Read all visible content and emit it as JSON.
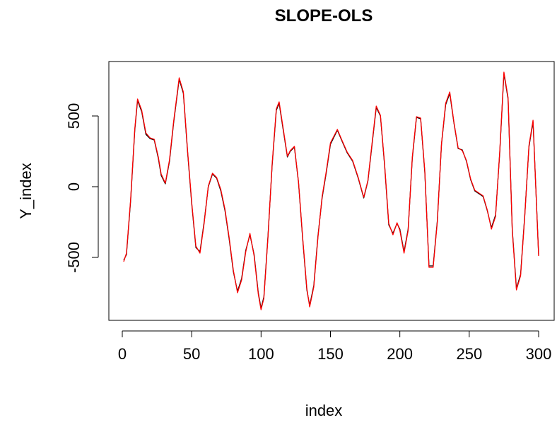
{
  "chart_data": {
    "type": "line",
    "title": "SLOPE-OLS",
    "xlabel": "index",
    "ylabel": "Y_index",
    "xlim": [
      1,
      300
    ],
    "ylim": [
      -900,
      820
    ],
    "x_ticks": [
      0,
      50,
      100,
      150,
      200,
      250,
      300
    ],
    "x_tick_labels": [
      "0",
      "50",
      "100",
      "150",
      "200",
      "250",
      "300"
    ],
    "y_ticks": [
      -500,
      0,
      500
    ],
    "y_tick_labels": [
      "-500",
      "0",
      "500"
    ],
    "grid": false,
    "legend": "none",
    "series": [
      {
        "color": "#000000",
        "x": [
          1,
          3,
          6,
          9,
          11,
          14,
          17,
          20,
          23,
          26,
          28,
          31,
          34,
          37,
          41,
          44,
          47,
          50,
          53,
          56,
          59,
          62,
          65,
          68,
          71,
          74,
          77,
          80,
          83,
          86,
          89,
          92,
          95,
          98,
          100,
          102,
          105,
          108,
          111,
          113,
          116,
          119,
          121,
          124,
          127,
          130,
          133,
          135,
          138,
          141,
          144,
          147,
          150,
          155,
          158,
          162,
          166,
          170,
          174,
          177,
          180,
          183,
          186,
          189,
          192,
          195,
          198,
          200,
          203,
          206,
          209,
          212,
          215,
          218,
          221,
          224,
          227,
          230,
          233,
          236,
          239,
          242,
          245,
          248,
          251,
          254,
          257,
          260,
          263,
          266,
          269,
          272,
          275,
          278,
          281,
          284,
          287,
          290,
          293,
          296,
          300
        ],
        "y": [
          -520,
          -480,
          -100,
          400,
          610,
          530,
          370,
          340,
          330,
          200,
          80,
          20,
          180,
          450,
          760,
          660,
          250,
          -120,
          -430,
          -460,
          -250,
          0,
          90,
          60,
          -30,
          -170,
          -370,
          -600,
          -740,
          -650,
          -450,
          -340,
          -480,
          -750,
          -860,
          -780,
          -350,
          150,
          540,
          590,
          400,
          210,
          250,
          280,
          30,
          -370,
          -730,
          -840,
          -700,
          -350,
          -80,
          100,
          300,
          400,
          330,
          240,
          180,
          60,
          -80,
          40,
          300,
          560,
          500,
          150,
          -270,
          -330,
          -260,
          -300,
          -460,
          -300,
          200,
          490,
          480,
          100,
          -560,
          -560,
          -240,
          300,
          580,
          660,
          450,
          270,
          260,
          180,
          50,
          -30,
          -50,
          -70,
          -170,
          -290,
          -200,
          240,
          800,
          620,
          -300,
          -720,
          -620,
          -200,
          280,
          460,
          -480
        ]
      },
      {
        "color": "#ff0000",
        "x": [
          1,
          3,
          6,
          9,
          11,
          14,
          17,
          20,
          23,
          26,
          28,
          31,
          34,
          37,
          41,
          44,
          47,
          50,
          53,
          56,
          59,
          62,
          65,
          68,
          71,
          74,
          77,
          80,
          83,
          86,
          89,
          92,
          95,
          98,
          100,
          102,
          105,
          108,
          111,
          113,
          116,
          119,
          121,
          124,
          127,
          130,
          133,
          135,
          138,
          141,
          144,
          147,
          150,
          155,
          158,
          162,
          166,
          170,
          174,
          177,
          180,
          183,
          186,
          189,
          192,
          195,
          198,
          200,
          203,
          206,
          209,
          212,
          215,
          218,
          221,
          224,
          227,
          230,
          233,
          236,
          239,
          242,
          245,
          248,
          251,
          254,
          257,
          260,
          263,
          266,
          269,
          272,
          275,
          278,
          281,
          284,
          287,
          290,
          293,
          296,
          300
        ],
        "y": [
          -530,
          -470,
          -90,
          410,
          620,
          540,
          380,
          345,
          335,
          210,
          90,
          25,
          190,
          460,
          770,
          670,
          260,
          -110,
          -420,
          -470,
          -260,
          5,
          95,
          65,
          -20,
          -160,
          -360,
          -590,
          -750,
          -660,
          -460,
          -330,
          -490,
          -760,
          -870,
          -790,
          -360,
          160,
          550,
          600,
          410,
          215,
          255,
          285,
          35,
          -360,
          -720,
          -850,
          -710,
          -360,
          -70,
          110,
          310,
          405,
          335,
          245,
          185,
          65,
          -75,
          45,
          310,
          570,
          505,
          160,
          -260,
          -340,
          -255,
          -310,
          -470,
          -310,
          210,
          495,
          485,
          110,
          -570,
          -570,
          -250,
          305,
          590,
          670,
          455,
          275,
          255,
          185,
          55,
          -25,
          -45,
          -65,
          -165,
          -300,
          -210,
          250,
          810,
          630,
          -310,
          -730,
          -630,
          -210,
          290,
          470,
          -490
        ]
      }
    ]
  }
}
